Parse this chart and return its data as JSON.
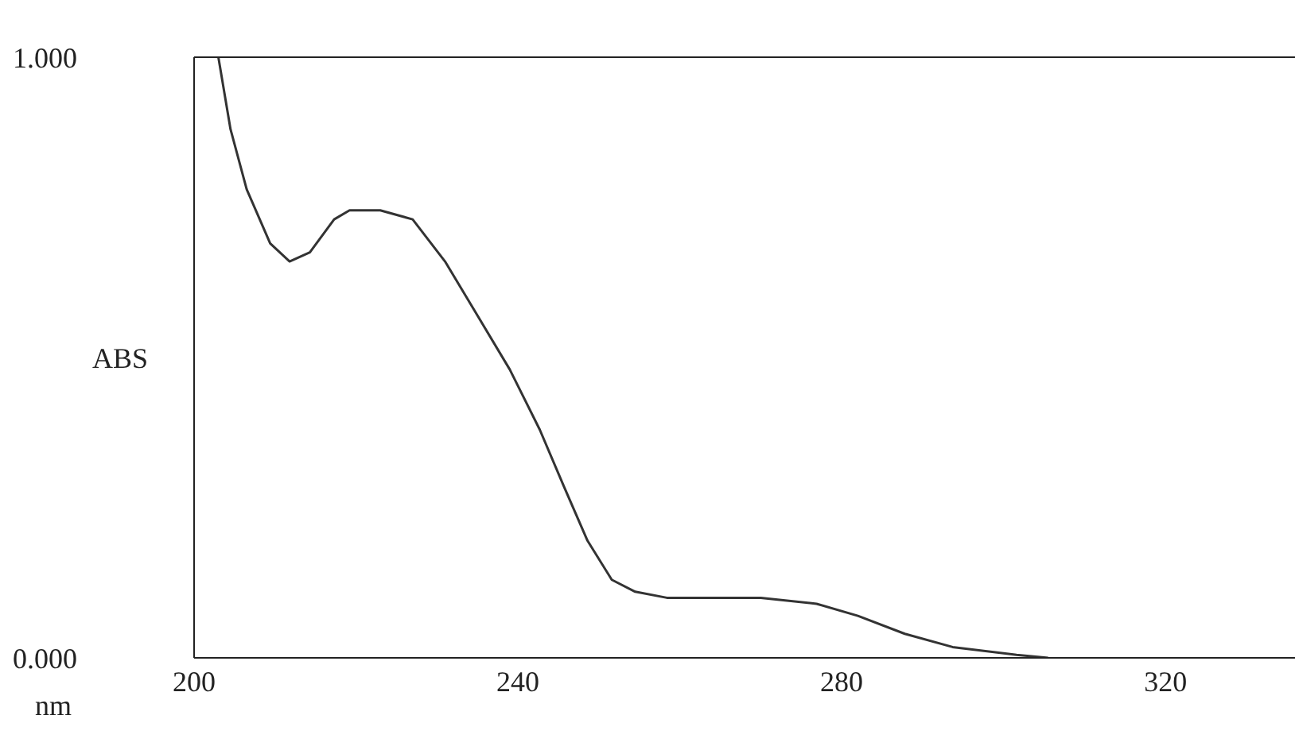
{
  "chart_data": {
    "type": "line",
    "xlabel": "nm",
    "ylabel": "ABS",
    "x": [
      203,
      204.5,
      206.5,
      209.4,
      211.8,
      214.3,
      217.3,
      219.2,
      223,
      227,
      231,
      235,
      239,
      242.7,
      245.7,
      248.6,
      251.6,
      254.5,
      258.4,
      270,
      276.9,
      282,
      287.8,
      293.7,
      301.6,
      305.5
    ],
    "series": [
      {
        "color": "#333333",
        "values": [
          1.0,
          0.88,
          0.78,
          0.69,
          0.66,
          0.675,
          0.73,
          0.745,
          0.745,
          0.73,
          0.66,
          0.57,
          0.48,
          0.38,
          0.285,
          0.195,
          0.13,
          0.11,
          0.1,
          0.1,
          0.09,
          0.07,
          0.04,
          0.018,
          0.005,
          0.0
        ]
      }
    ],
    "xlim": [
      200,
      336
    ],
    "xticks": [
      200,
      240,
      280,
      320
    ],
    "ylim": [
      0,
      1
    ],
    "yticks": [
      {
        "value": 0,
        "label": "0.000"
      },
      {
        "value": 1,
        "label": "1.000"
      }
    ],
    "grid": false,
    "legend": false,
    "marker": "none",
    "line_style": "solid"
  }
}
